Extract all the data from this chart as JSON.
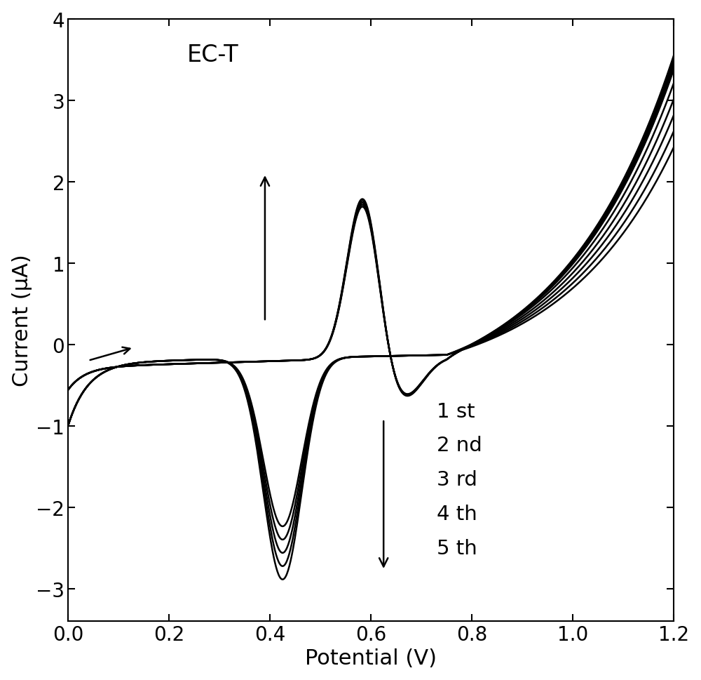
{
  "title": "EC-T",
  "xlabel": "Potential (V)",
  "ylabel": "Current (μA)",
  "xlim": [
    0.0,
    1.2
  ],
  "ylim": [
    -3.4,
    4.0
  ],
  "xticks": [
    0.0,
    0.2,
    0.4,
    0.6,
    0.8,
    1.0,
    1.2
  ],
  "yticks": [
    -3,
    -2,
    -1,
    0,
    1,
    2,
    3,
    4
  ],
  "legend_labels": [
    "1 st",
    "2 nd",
    "3 rd",
    "4 th",
    "5 th"
  ],
  "line_color": "#000000",
  "background_color": "#ffffff",
  "figsize": [
    10.0,
    9.7
  ]
}
